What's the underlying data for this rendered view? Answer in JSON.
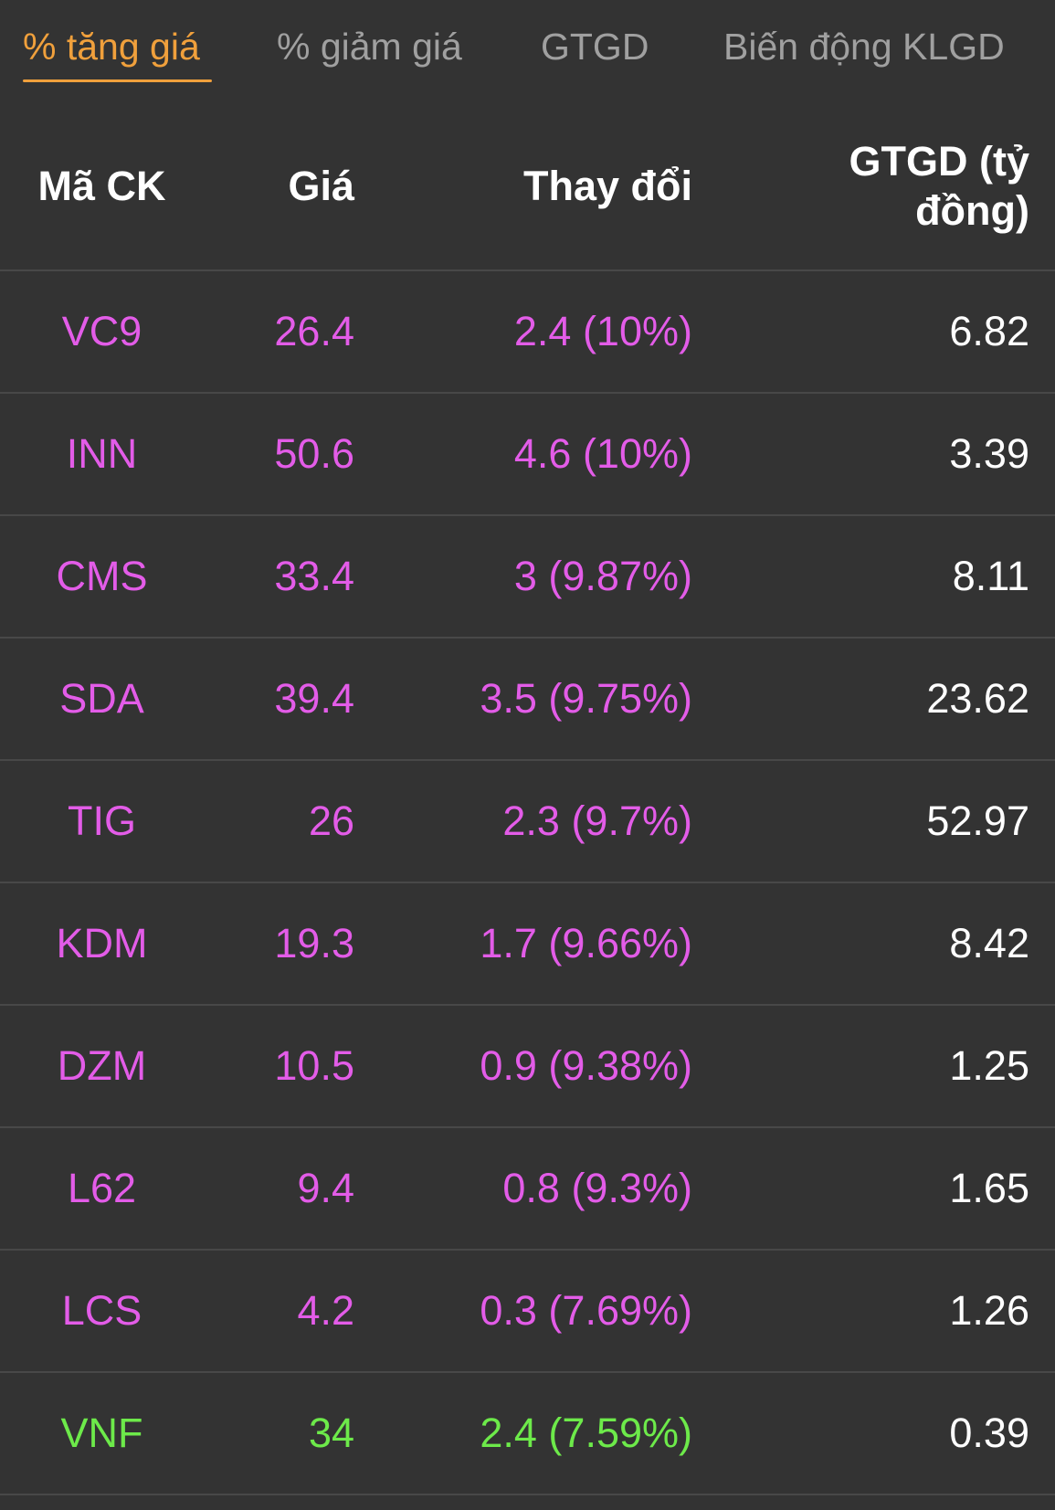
{
  "tabs": [
    {
      "label": "% tăng giá",
      "active": true
    },
    {
      "label": "% giảm giá",
      "active": false
    },
    {
      "label": "GTGD",
      "active": false
    },
    {
      "label": "Biến động KLGD",
      "active": false
    }
  ],
  "colors": {
    "active_tab": "#f0a03c",
    "inactive_tab": "#a0a0a0",
    "ceiling_purple": "#e35ce8",
    "increase_green": "#6dea4a",
    "background": "#333333"
  },
  "table": {
    "headers": {
      "symbol": "Mã CK",
      "price": "Giá",
      "change": "Thay đổi",
      "value_line1": "GTGD (tỷ",
      "value_line2": "đồng)"
    },
    "rows": [
      {
        "symbol": "VC9",
        "price": "26.4",
        "change": "2.4 (10%)",
        "value": "6.82",
        "color": "purple"
      },
      {
        "symbol": "INN",
        "price": "50.6",
        "change": "4.6 (10%)",
        "value": "3.39",
        "color": "purple"
      },
      {
        "symbol": "CMS",
        "price": "33.4",
        "change": "3 (9.87%)",
        "value": "8.11",
        "color": "purple"
      },
      {
        "symbol": "SDA",
        "price": "39.4",
        "change": "3.5 (9.75%)",
        "value": "23.62",
        "color": "purple"
      },
      {
        "symbol": "TIG",
        "price": "26",
        "change": "2.3 (9.7%)",
        "value": "52.97",
        "color": "purple"
      },
      {
        "symbol": "KDM",
        "price": "19.3",
        "change": "1.7 (9.66%)",
        "value": "8.42",
        "color": "purple"
      },
      {
        "symbol": "DZM",
        "price": "10.5",
        "change": "0.9 (9.38%)",
        "value": "1.25",
        "color": "purple"
      },
      {
        "symbol": "L62",
        "price": "9.4",
        "change": "0.8 (9.3%)",
        "value": "1.65",
        "color": "purple"
      },
      {
        "symbol": "LCS",
        "price": "4.2",
        "change": "0.3 (7.69%)",
        "value": "1.26",
        "color": "purple"
      },
      {
        "symbol": "VNF",
        "price": "34",
        "change": "2.4 (7.59%)",
        "value": "0.39",
        "color": "green"
      }
    ]
  }
}
